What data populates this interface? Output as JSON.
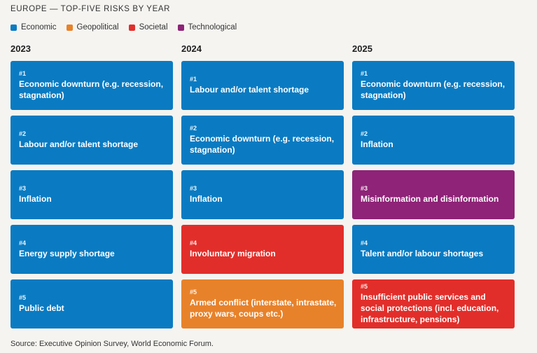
{
  "title": "EUROPE — TOP-FIVE RISKS BY YEAR",
  "legend": [
    {
      "label": "Economic",
      "color": "#0a7bc2"
    },
    {
      "label": "Geopolitical",
      "color": "#e8822a"
    },
    {
      "label": "Societal",
      "color": "#e22e2a"
    },
    {
      "label": "Technological",
      "color": "#8e2377"
    }
  ],
  "years": [
    {
      "year": "2023",
      "risks": [
        {
          "rank": "#1",
          "label": "Economic downturn (e.g. recession, stagnation)",
          "category": "Economic"
        },
        {
          "rank": "#2",
          "label": "Labour and/or talent shortage",
          "category": "Economic"
        },
        {
          "rank": "#3",
          "label": "Inflation",
          "category": "Economic"
        },
        {
          "rank": "#4",
          "label": "Energy supply shortage",
          "category": "Economic"
        },
        {
          "rank": "#5",
          "label": "Public debt",
          "category": "Economic"
        }
      ]
    },
    {
      "year": "2024",
      "risks": [
        {
          "rank": "#1",
          "label": "Labour and/or talent shortage",
          "category": "Economic"
        },
        {
          "rank": "#2",
          "label": "Economic downturn (e.g. recession, stagnation)",
          "category": "Economic"
        },
        {
          "rank": "#3",
          "label": "Inflation",
          "category": "Economic"
        },
        {
          "rank": "#4",
          "label": "Involuntary migration",
          "category": "Societal"
        },
        {
          "rank": "#5",
          "label": "Armed conflict (interstate, intrastate, proxy wars, coups etc.)",
          "category": "Geopolitical"
        }
      ]
    },
    {
      "year": "2025",
      "risks": [
        {
          "rank": "#1",
          "label": "Economic downturn (e.g. recession, stagnation)",
          "category": "Economic"
        },
        {
          "rank": "#2",
          "label": "Inflation",
          "category": "Economic"
        },
        {
          "rank": "#3",
          "label": "Misinformation and disinformation",
          "category": "Technological"
        },
        {
          "rank": "#4",
          "label": "Talent and/or labour shortages",
          "category": "Economic"
        },
        {
          "rank": "#5",
          "label": "Insufficient public services and social protections (incl. education, infrastructure, pensions)",
          "category": "Societal"
        }
      ]
    }
  ],
  "source": "Source: Executive Opinion Survey, World Economic Forum."
}
